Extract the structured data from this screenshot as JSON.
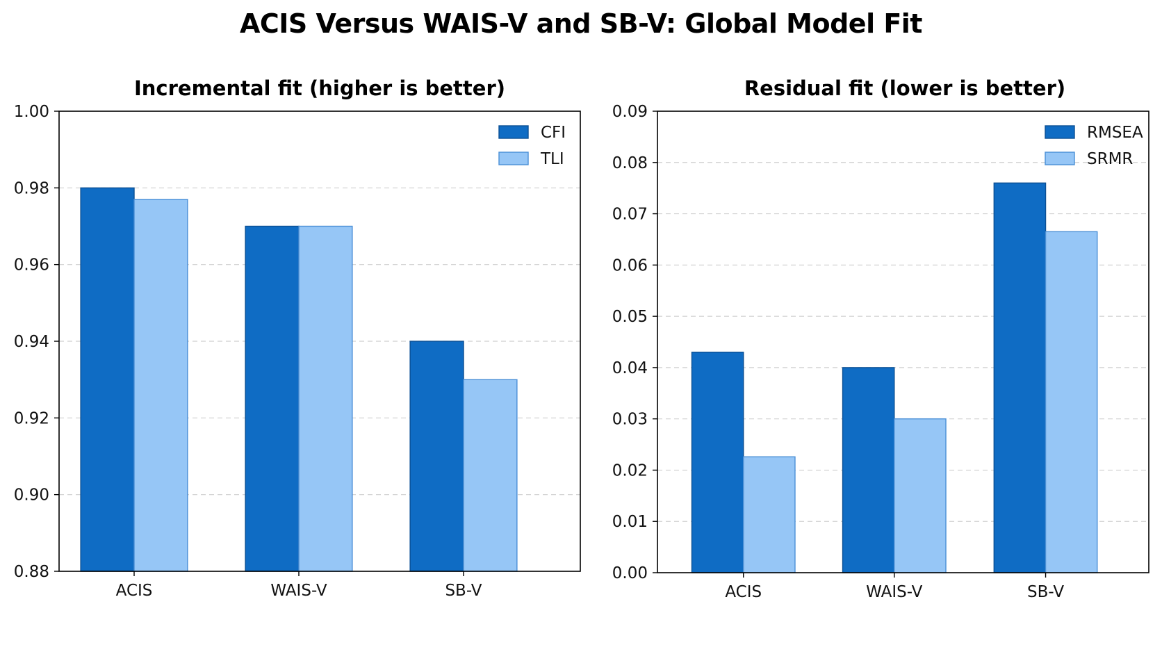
{
  "figure": {
    "title": "ACIS Versus WAIS-V and SB-V: Global Model Fit"
  },
  "colors": {
    "dark_blue": "#0f6cc4",
    "dark_blue_edge": "#0a4f94",
    "light_blue": "#96c6f6",
    "light_blue_edge": "#4a8fd6"
  },
  "chart_data": [
    {
      "type": "bar",
      "title": "Incremental fit (higher is better)",
      "xlabel": "",
      "ylabel": "",
      "categories": [
        "ACIS",
        "WAIS-V",
        "SB-V"
      ],
      "series": [
        {
          "name": "CFI",
          "values": [
            0.98,
            0.97,
            0.94
          ]
        },
        {
          "name": "TLI",
          "values": [
            0.977,
            0.97,
            0.93
          ]
        }
      ],
      "ylim": [
        0.88,
        1.0
      ],
      "yticks": [
        "0.88",
        "0.90",
        "0.92",
        "0.94",
        "0.96",
        "0.98",
        "1.00"
      ],
      "grid": true,
      "legend": "top-right"
    },
    {
      "type": "bar",
      "title": "Residual fit (lower is better)",
      "xlabel": "",
      "ylabel": "",
      "categories": [
        "ACIS",
        "WAIS-V",
        "SB-V"
      ],
      "series": [
        {
          "name": "RMSEA",
          "values": [
            0.043,
            0.04,
            0.076
          ]
        },
        {
          "name": "SRMR",
          "values": [
            0.0226,
            0.03,
            0.0665
          ]
        }
      ],
      "ylim": [
        0.0,
        0.09
      ],
      "yticks": [
        "0.00",
        "0.01",
        "0.02",
        "0.03",
        "0.04",
        "0.05",
        "0.06",
        "0.07",
        "0.08",
        "0.09"
      ],
      "grid": true,
      "legend": "top-right"
    }
  ]
}
